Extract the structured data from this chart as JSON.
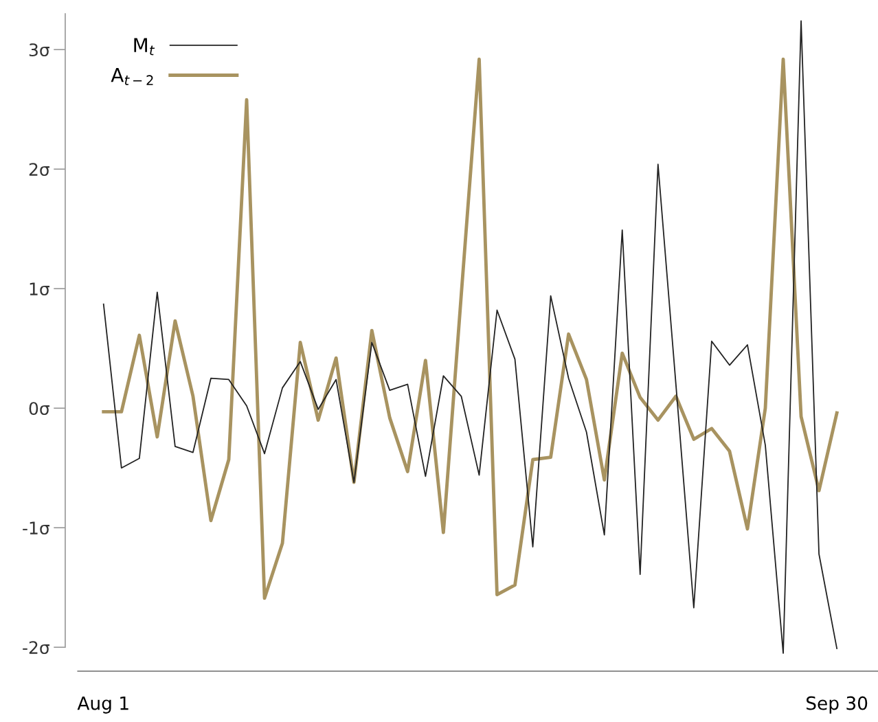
{
  "chart_data": {
    "type": "line",
    "categories": [
      "Aug 1",
      null,
      null,
      null,
      null,
      null,
      null,
      null,
      null,
      null,
      null,
      null,
      null,
      null,
      null,
      null,
      null,
      null,
      null,
      null,
      null,
      null,
      null,
      null,
      null,
      null,
      null,
      null,
      null,
      null,
      null,
      null,
      null,
      null,
      null,
      null,
      null,
      null,
      null,
      null,
      null,
      "Sep 30"
    ],
    "series": [
      {
        "name": "M$_{t}$",
        "color": "#222222",
        "values": [
          0.87,
          -0.5,
          -0.42,
          0.97,
          -0.32,
          -0.37,
          0.25,
          0.24,
          0.02,
          -0.38,
          0.17,
          0.39,
          -0.01,
          0.24,
          -0.62,
          0.55,
          0.15,
          0.2,
          -0.57,
          0.27,
          0.1,
          -0.56,
          0.82,
          0.41,
          -1.16,
          0.94,
          0.25,
          -0.2,
          -1.06,
          1.49,
          -1.39,
          2.04,
          0.2,
          -1.67,
          0.56,
          0.36,
          0.53,
          -0.31,
          -2.05,
          3.24,
          -1.22,
          -2.01
        ]
      },
      {
        "name": "A$_{t−2}$",
        "color": "#a89360",
        "values": [
          -0.03,
          -0.03,
          0.61,
          -0.24,
          0.73,
          0.1,
          -0.94,
          -0.43,
          2.58,
          -1.59,
          -1.13,
          0.55,
          -0.1,
          0.42,
          -0.62,
          0.65,
          -0.08,
          -0.53,
          0.4,
          -1.04,
          0.95,
          2.92,
          -1.56,
          -1.48,
          -0.43,
          -0.41,
          0.62,
          0.24,
          -0.6,
          0.46,
          0.09,
          -0.1,
          0.1,
          -0.26,
          -0.17,
          -0.36,
          -1.01,
          0.0,
          2.92,
          -0.07,
          -0.69,
          -0.04
        ]
      }
    ],
    "ylim": [
      -2.2,
      3.3
    ],
    "yticks": [
      {
        "value": -2,
        "label": "-2σ"
      },
      {
        "value": -1,
        "label": "-1σ"
      },
      {
        "value": 0,
        "label": "0σ"
      },
      {
        "value": 1,
        "label": "1σ"
      },
      {
        "value": 2,
        "label": "2σ"
      },
      {
        "value": 3,
        "label": "3σ"
      }
    ],
    "legend": "top left",
    "grid": false,
    "marker": "none",
    "line_style": "solid"
  }
}
